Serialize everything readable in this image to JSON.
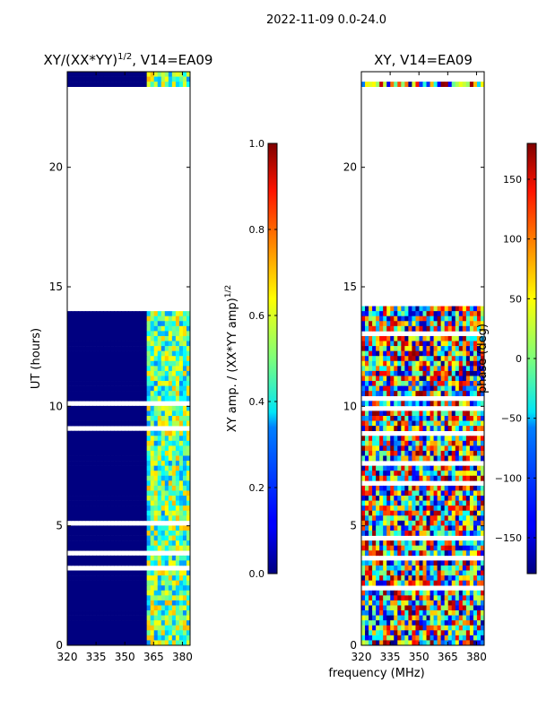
{
  "figure_title": "2022-11-09 0.0-24.0",
  "chart_data": [
    {
      "type": "heatmap",
      "title": "XY/(XX*YY)$^{1/2}$, V14=EA09",
      "title_main": "XY/(XX*YY)",
      "title_exp": "1/2",
      "title_tail": ", V14=EA09",
      "xlabel": "",
      "ylabel": "UT (hours)",
      "xlim": [
        320,
        384
      ],
      "ylim": [
        0,
        24
      ],
      "xticks": [
        320,
        335,
        350,
        365,
        380
      ],
      "xtick_labels": [
        "320",
        "335",
        "350",
        "365",
        "380"
      ],
      "yticks": [
        0,
        5,
        10,
        15,
        20
      ],
      "ytick_labels": [
        "0",
        "5",
        "10",
        "15",
        "20"
      ],
      "colormap": "jet",
      "data_hours": [
        [
          0,
          14.1
        ],
        [
          23.4,
          24
        ]
      ],
      "gap_hours": [
        [
          14.1,
          23.4
        ]
      ],
      "notes": "low amplitude (~0) across 320-360 MHz, higher amplitude (~0.3-0.7) at 361-384 MHz",
      "colorbar": {
        "label": "XY amp. / (XX*YY amp)$^{1/2}$",
        "label_main": "XY amp. / (XX*YY amp)",
        "label_exp": "1/2",
        "range": [
          0.0,
          1.0
        ],
        "ticks": [
          0.0,
          0.2,
          0.4,
          0.6,
          0.8,
          1.0
        ],
        "tick_labels": [
          "0.0",
          "0.2",
          "0.4",
          "0.6",
          "0.8",
          "1.0"
        ]
      }
    },
    {
      "type": "heatmap",
      "title": "XY, V14=EA09",
      "xlabel": "frequency (MHz)",
      "ylabel": "",
      "xlim": [
        320,
        384
      ],
      "ylim": [
        0,
        24
      ],
      "xticks": [
        320,
        335,
        350,
        365,
        380
      ],
      "xtick_labels": [
        "320",
        "335",
        "350",
        "365",
        "380"
      ],
      "yticks": [
        0,
        5,
        10,
        15,
        20
      ],
      "ytick_labels": [
        "0",
        "5",
        "10",
        "15",
        "20"
      ],
      "colormap": "jet",
      "data_hours": [
        [
          0,
          14.1
        ],
        [
          23.4,
          24
        ]
      ],
      "gap_hours": [
        [
          14.1,
          23.4
        ]
      ],
      "notes": "phase varies widely from -180 to 180 degrees",
      "colorbar": {
        "label": "phase (deg)",
        "range": [
          -180,
          180
        ],
        "ticks": [
          -150,
          -100,
          -50,
          0,
          50,
          100,
          150
        ],
        "tick_labels": [
          "−150",
          "−100",
          "−50",
          "0",
          "50",
          "100",
          "150"
        ]
      }
    }
  ]
}
